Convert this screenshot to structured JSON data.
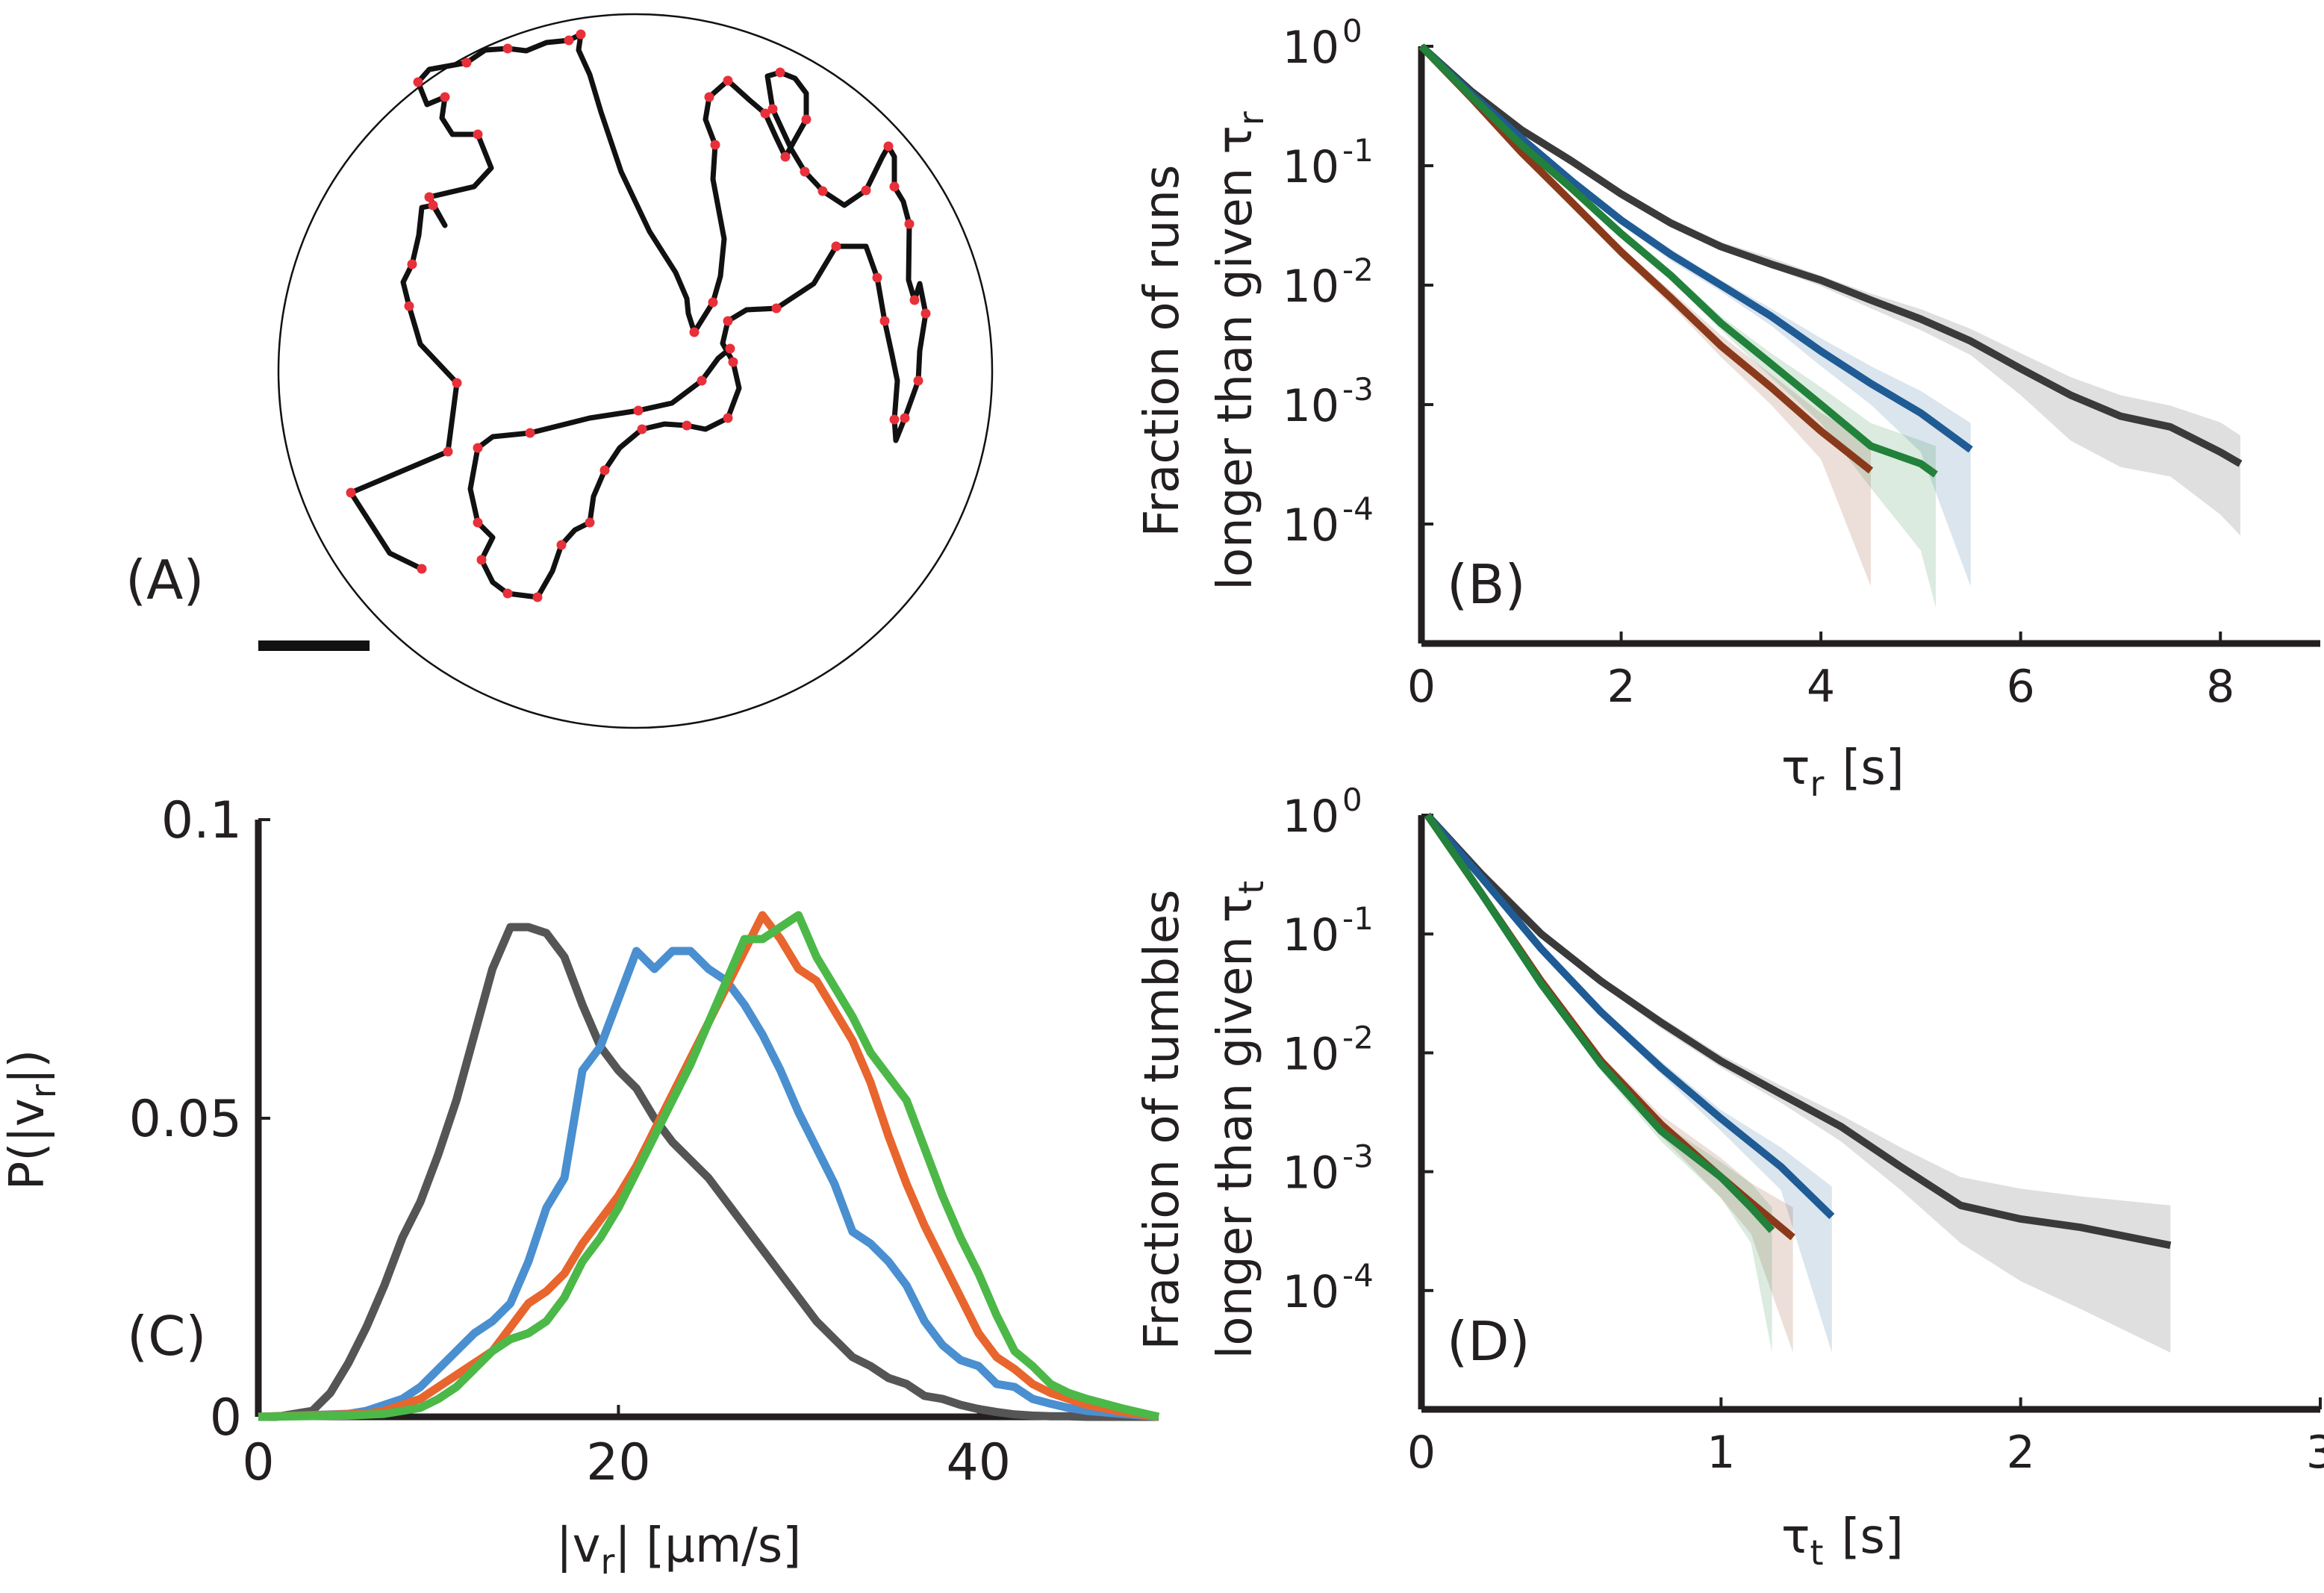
{
  "panels": {
    "A": {
      "label": "(A)"
    },
    "B": {
      "label": "(B)"
    },
    "C": {
      "label": "(C)"
    },
    "D": {
      "label": "(D)"
    }
  },
  "colors": {
    "black": "#3a3a3a",
    "blue": "#1f5b95",
    "orange": "#8a3a1a",
    "green": "#22813a",
    "c_black": "#555555",
    "c_blue": "#4a8fd0",
    "c_orange": "#e8652d",
    "c_green": "#4cb848",
    "track": "#111111",
    "tumble": "#e8303a"
  },
  "chart_data": [
    {
      "panel": "B",
      "type": "line",
      "scale_y": "log",
      "xlabel_symbol": "τ",
      "xlabel_sub": "r",
      "xlabel_unit": "[s]",
      "ylabel_line1": "Fraction of runs",
      "ylabel_line2": "longer than given",
      "ylabel_symbol": "τ",
      "ylabel_sub": "r",
      "xlim": [
        0,
        9
      ],
      "ylim_exp": [
        -5,
        0
      ],
      "xticks": [
        0,
        2,
        4,
        6,
        8
      ],
      "xtick_labels": [
        "0",
        "2",
        "4",
        "6",
        "8"
      ],
      "ytick_exps": [
        0,
        -1,
        -2,
        -3,
        -4
      ],
      "ytick_labels": [
        "10",
        "10",
        "10",
        "10",
        "10"
      ],
      "ytick_sups": [
        "0",
        "-1",
        "-2",
        "-3",
        "-4"
      ],
      "series": [
        {
          "name": "black",
          "color_key": "black",
          "x": [
            0,
            0.5,
            1,
            1.5,
            2,
            2.5,
            3,
            3.5,
            4,
            4.5,
            5,
            5.5,
            6,
            6.5,
            7,
            7.5,
            8,
            8.2
          ],
          "y": [
            1,
            0.42,
            0.2,
            0.11,
            0.058,
            0.033,
            0.021,
            0.015,
            0.011,
            0.0075,
            0.0052,
            0.0034,
            0.002,
            0.0012,
            0.0008,
            0.00065,
            0.0004,
            0.00032
          ],
          "band_lo": [
            1,
            0.4,
            0.19,
            0.1,
            0.054,
            0.031,
            0.02,
            0.014,
            0.0098,
            0.0064,
            0.0042,
            0.0026,
            0.0012,
            0.0005,
            0.0003,
            0.00025,
            0.00012,
            8e-05
          ],
          "band_hi": [
            1,
            0.44,
            0.21,
            0.12,
            0.062,
            0.036,
            0.023,
            0.017,
            0.012,
            0.0085,
            0.0063,
            0.0043,
            0.0027,
            0.0017,
            0.0012,
            0.00098,
            0.00071,
            0.00055
          ]
        },
        {
          "name": "blue",
          "color_key": "blue",
          "x": [
            0,
            0.5,
            1,
            1.5,
            2,
            2.5,
            3,
            3.5,
            4,
            4.5,
            5,
            5.5
          ],
          "y": [
            1,
            0.4,
            0.17,
            0.075,
            0.035,
            0.018,
            0.01,
            0.0055,
            0.0028,
            0.0015,
            0.00085,
            0.00042
          ],
          "band_lo": [
            1,
            0.38,
            0.16,
            0.07,
            0.032,
            0.016,
            0.0088,
            0.0046,
            0.0021,
            0.001,
            0.0004,
            3e-05
          ],
          "band_hi": [
            1,
            0.42,
            0.18,
            0.08,
            0.038,
            0.02,
            0.011,
            0.0064,
            0.0036,
            0.0021,
            0.0013,
            0.0007
          ]
        },
        {
          "name": "orange",
          "color_key": "orange",
          "x": [
            0,
            0.5,
            1,
            1.5,
            2,
            2.5,
            3,
            3.5,
            4,
            4.5
          ],
          "y": [
            1,
            0.37,
            0.13,
            0.05,
            0.019,
            0.0078,
            0.0031,
            0.0014,
            0.0006,
            0.00028
          ],
          "band_lo": [
            1,
            0.35,
            0.12,
            0.046,
            0.017,
            0.0068,
            0.0025,
            0.001,
            0.00035,
            3e-05
          ],
          "band_hi": [
            1,
            0.39,
            0.14,
            0.054,
            0.021,
            0.0089,
            0.0038,
            0.0018,
            0.00085,
            0.0005
          ]
        },
        {
          "name": "green",
          "color_key": "green",
          "x": [
            0,
            0.5,
            1,
            1.5,
            2,
            2.5,
            3,
            3.5,
            4,
            4.5,
            5,
            5.15
          ],
          "y": [
            1,
            0.38,
            0.15,
            0.065,
            0.027,
            0.012,
            0.0048,
            0.0022,
            0.001,
            0.00045,
            0.00032,
            0.00026
          ],
          "band_lo": [
            1,
            0.36,
            0.14,
            0.06,
            0.025,
            0.011,
            0.0042,
            0.0017,
            0.0007,
            0.0002,
            6e-05,
            2e-05
          ],
          "band_hi": [
            1,
            0.4,
            0.16,
            0.07,
            0.029,
            0.013,
            0.0055,
            0.0027,
            0.0014,
            0.0007,
            0.0005,
            0.00045
          ]
        }
      ]
    },
    {
      "panel": "C",
      "type": "line",
      "scale_y": "linear",
      "xlabel_prefix": "|v",
      "xlabel_sub": "r",
      "xlabel_suffix": "|  [μm/s]",
      "ylabel_prefix": "P(|v",
      "ylabel_sub": "r",
      "ylabel_suffix": "|)",
      "xlim": [
        0,
        50
      ],
      "ylim": [
        0,
        0.1
      ],
      "xticks": [
        0,
        20,
        40
      ],
      "xtick_labels": [
        "0",
        "20",
        "40"
      ],
      "yticks": [
        0,
        0.05,
        0.1
      ],
      "ytick_labels": [
        "0",
        "0.05",
        "0.1"
      ],
      "series": [
        {
          "name": "black",
          "color_key": "c_black",
          "x": [
            0,
            1,
            2,
            3,
            4,
            5,
            6,
            7,
            8,
            9,
            10,
            11,
            12,
            13,
            14,
            15,
            16,
            17,
            18,
            19,
            20,
            21,
            22,
            23,
            24,
            25,
            26,
            27,
            28,
            29,
            30,
            31,
            32,
            33,
            34,
            35,
            36,
            37,
            38,
            39,
            40,
            41,
            42,
            43,
            44,
            45,
            46,
            48,
            50
          ],
          "y": [
            0,
            0,
            0.0005,
            0.001,
            0.004,
            0.009,
            0.015,
            0.022,
            0.03,
            0.036,
            0.044,
            0.053,
            0.064,
            0.075,
            0.082,
            0.082,
            0.081,
            0.077,
            0.069,
            0.062,
            0.058,
            0.055,
            0.05,
            0.046,
            0.043,
            0.04,
            0.036,
            0.032,
            0.028,
            0.024,
            0.02,
            0.016,
            0.013,
            0.01,
            0.0085,
            0.0065,
            0.0055,
            0.0035,
            0.003,
            0.002,
            0.0013,
            0.0008,
            0.0004,
            0.0002,
            0.0001,
            0.0001,
            0.0,
            0.0,
            0.0
          ]
        },
        {
          "name": "blue",
          "color_key": "c_blue",
          "x": [
            0,
            5,
            6,
            7,
            8,
            9,
            10,
            11,
            12,
            13,
            14,
            15,
            16,
            17,
            18,
            19,
            20,
            21,
            22,
            23,
            24,
            25,
            26,
            27,
            28,
            29,
            30,
            31,
            32,
            33,
            34,
            35,
            36,
            37,
            38,
            39,
            40,
            41,
            42,
            43,
            44,
            45,
            46,
            48,
            50
          ],
          "y": [
            0,
            0.0005,
            0.001,
            0.002,
            0.003,
            0.005,
            0.008,
            0.011,
            0.014,
            0.016,
            0.019,
            0.026,
            0.035,
            0.04,
            0.058,
            0.062,
            0.07,
            0.078,
            0.075,
            0.078,
            0.078,
            0.075,
            0.073,
            0.069,
            0.064,
            0.058,
            0.051,
            0.045,
            0.039,
            0.031,
            0.029,
            0.026,
            0.022,
            0.016,
            0.012,
            0.0095,
            0.0085,
            0.0055,
            0.005,
            0.003,
            0.0022,
            0.0015,
            0.001,
            0.0005,
            0.0
          ]
        },
        {
          "name": "orange",
          "color_key": "c_orange",
          "x": [
            0,
            6,
            7,
            8,
            9,
            10,
            11,
            12,
            13,
            14,
            15,
            16,
            17,
            18,
            19,
            20,
            21,
            22,
            23,
            24,
            25,
            26,
            27,
            28,
            29,
            30,
            31,
            32,
            33,
            34,
            35,
            36,
            37,
            38,
            39,
            40,
            41,
            42,
            43,
            44,
            45,
            46,
            48,
            50
          ],
          "y": [
            0,
            0.0005,
            0.001,
            0.002,
            0.003,
            0.005,
            0.007,
            0.009,
            0.011,
            0.015,
            0.019,
            0.021,
            0.024,
            0.029,
            0.033,
            0.037,
            0.042,
            0.048,
            0.054,
            0.06,
            0.066,
            0.072,
            0.078,
            0.084,
            0.08,
            0.075,
            0.073,
            0.068,
            0.063,
            0.056,
            0.047,
            0.039,
            0.032,
            0.026,
            0.02,
            0.014,
            0.01,
            0.008,
            0.0055,
            0.004,
            0.003,
            0.002,
            0.0008,
            0.0
          ]
        },
        {
          "name": "green",
          "color_key": "c_green",
          "x": [
            0,
            5,
            7,
            8,
            9,
            10,
            11,
            12,
            13,
            14,
            15,
            16,
            17,
            18,
            19,
            20,
            21,
            22,
            23,
            24,
            25,
            26,
            27,
            28,
            29,
            30,
            31,
            32,
            33,
            34,
            35,
            36,
            37,
            38,
            39,
            40,
            41,
            42,
            43,
            44,
            45,
            46,
            48,
            50
          ],
          "y": [
            0,
            0.0002,
            0.0005,
            0.001,
            0.0015,
            0.003,
            0.005,
            0.008,
            0.011,
            0.013,
            0.014,
            0.016,
            0.02,
            0.026,
            0.03,
            0.035,
            0.041,
            0.047,
            0.053,
            0.059,
            0.066,
            0.073,
            0.08,
            0.08,
            0.082,
            0.084,
            0.077,
            0.072,
            0.067,
            0.061,
            0.057,
            0.053,
            0.045,
            0.037,
            0.03,
            0.024,
            0.017,
            0.011,
            0.0085,
            0.0055,
            0.004,
            0.003,
            0.0014,
            0.0
          ]
        }
      ]
    },
    {
      "panel": "D",
      "type": "line",
      "scale_y": "log",
      "xlabel_symbol": "τ",
      "xlabel_sub": "t",
      "xlabel_unit": "[s]",
      "ylabel_line1": "Fraction of tumbles",
      "ylabel_line2": "longer than given",
      "ylabel_symbol": "τ",
      "ylabel_sub": "t",
      "xlim": [
        0,
        3
      ],
      "ylim_exp": [
        -5,
        0
      ],
      "xticks": [
        0,
        1,
        2,
        3
      ],
      "xtick_labels": [
        "0",
        "1",
        "2",
        "3"
      ],
      "ytick_exps": [
        0,
        -1,
        -2,
        -3,
        -4
      ],
      "ytick_labels": [
        "10",
        "10",
        "10",
        "10",
        "10"
      ],
      "ytick_sups": [
        "0",
        "-1",
        "-2",
        "-3",
        "-4"
      ],
      "series": [
        {
          "name": "black",
          "color_key": "black",
          "x": [
            0.02,
            0.2,
            0.4,
            0.6,
            0.8,
            1.0,
            1.2,
            1.4,
            1.6,
            1.8,
            2.0,
            2.2,
            2.5
          ],
          "y": [
            1,
            0.32,
            0.1,
            0.04,
            0.018,
            0.0085,
            0.0045,
            0.0024,
            0.0011,
            0.00052,
            0.0004,
            0.00034,
            0.00024
          ],
          "band_lo": [
            1,
            0.3,
            0.095,
            0.037,
            0.016,
            0.0075,
            0.0038,
            0.0018,
            0.0007,
            0.00025,
            0.00012,
            7e-05,
            3e-05
          ],
          "band_hi": [
            1,
            0.34,
            0.11,
            0.043,
            0.02,
            0.0096,
            0.0053,
            0.003,
            0.0016,
            0.0009,
            0.00072,
            0.00062,
            0.00052
          ]
        },
        {
          "name": "blue",
          "color_key": "blue",
          "x": [
            0.02,
            0.2,
            0.4,
            0.6,
            0.8,
            1.0,
            1.2,
            1.37
          ],
          "y": [
            1,
            0.3,
            0.075,
            0.022,
            0.0075,
            0.0028,
            0.0011,
            0.00042
          ],
          "band_lo": [
            1,
            0.28,
            0.07,
            0.02,
            0.0066,
            0.0022,
            0.0007,
            3e-05
          ],
          "band_hi": [
            1,
            0.32,
            0.08,
            0.024,
            0.0085,
            0.0033,
            0.0016,
            0.00075
          ]
        },
        {
          "name": "orange",
          "color_key": "orange",
          "x": [
            0.02,
            0.2,
            0.4,
            0.6,
            0.8,
            1.0,
            1.1,
            1.24
          ],
          "y": [
            1,
            0.22,
            0.04,
            0.0085,
            0.0025,
            0.0009,
            0.00055,
            0.00028
          ],
          "band_lo": [
            1,
            0.2,
            0.036,
            0.0075,
            0.002,
            0.0006,
            0.0003,
            3e-05
          ],
          "band_hi": [
            1,
            0.24,
            0.044,
            0.0095,
            0.003,
            0.0013,
            0.0008,
            0.0005
          ]
        },
        {
          "name": "green",
          "color_key": "green",
          "x": [
            0.02,
            0.2,
            0.4,
            0.6,
            0.8,
            1.0,
            1.1,
            1.17
          ],
          "y": [
            1,
            0.22,
            0.038,
            0.008,
            0.0022,
            0.0009,
            0.0005,
            0.00032
          ],
          "band_lo": [
            1,
            0.2,
            0.034,
            0.007,
            0.0018,
            0.0006,
            0.00025,
            3e-05
          ],
          "band_hi": [
            1,
            0.24,
            0.042,
            0.009,
            0.0026,
            0.0012,
            0.0008,
            0.0005
          ]
        }
      ]
    }
  ]
}
